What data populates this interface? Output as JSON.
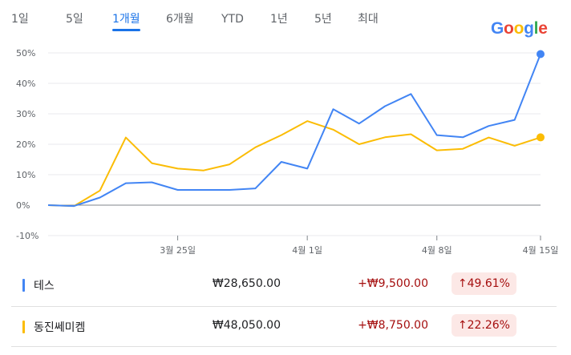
{
  "tabs": [
    {
      "label": "1일",
      "active": false
    },
    {
      "label": "5일",
      "active": false
    },
    {
      "label": "1개월",
      "active": true
    },
    {
      "label": "6개월",
      "active": false
    },
    {
      "label": "YTD",
      "active": false
    },
    {
      "label": "1년",
      "active": false
    },
    {
      "label": "5년",
      "active": false
    },
    {
      "label": "최대",
      "active": false
    }
  ],
  "logo": {
    "text": "Google",
    "letters": [
      "G",
      "o",
      "o",
      "g",
      "l",
      "e"
    ],
    "colors": [
      "#4285f4",
      "#ea4335",
      "#fbbc05",
      "#4285f4",
      "#34a853",
      "#ea4335"
    ]
  },
  "chart_data": {
    "type": "line",
    "title": "",
    "xlabel": "",
    "ylabel": "",
    "x_ticks": [
      {
        "label": "3월 25일",
        "index": 5
      },
      {
        "label": "4월 1일",
        "index": 10
      },
      {
        "label": "4월 8일",
        "index": 15
      },
      {
        "label": "4월 15일",
        "index": 19
      }
    ],
    "y_ticks": [
      -10,
      0,
      10,
      20,
      30,
      40,
      50
    ],
    "y_tick_labels": [
      "-10%",
      "0%",
      "10%",
      "20%",
      "30%",
      "40%",
      "50%"
    ],
    "ylim": [
      -10,
      50
    ],
    "series": [
      {
        "label": "테스",
        "color": "#4285f4",
        "values": [
          0,
          -0.3,
          2.5,
          7.2,
          7.5,
          5,
          5,
          5,
          5.5,
          14.2,
          12,
          31.5,
          26.8,
          32.5,
          36.5,
          23,
          22.3,
          26,
          28,
          49.61
        ]
      },
      {
        "label": "동진쎄미켐",
        "color": "#fbbc04",
        "values": [
          0,
          -0.3,
          4.8,
          22.2,
          13.8,
          12,
          11.4,
          13.4,
          19,
          23,
          27.6,
          24.8,
          20,
          22.3,
          23.3,
          18,
          18.5,
          22.2,
          19.5,
          22.26
        ]
      }
    ],
    "grid": true,
    "legend": "table-below"
  },
  "rows": [
    {
      "name": "테스",
      "color": "#4285f4",
      "price": "₩28,650.00",
      "change": "+₩9,500.00",
      "pct": "↑49.61%"
    },
    {
      "name": "동진쎄미켐",
      "color": "#fbbc04",
      "price": "₩48,050.00",
      "change": "+₩8,750.00",
      "pct": "↑22.26%"
    }
  ]
}
